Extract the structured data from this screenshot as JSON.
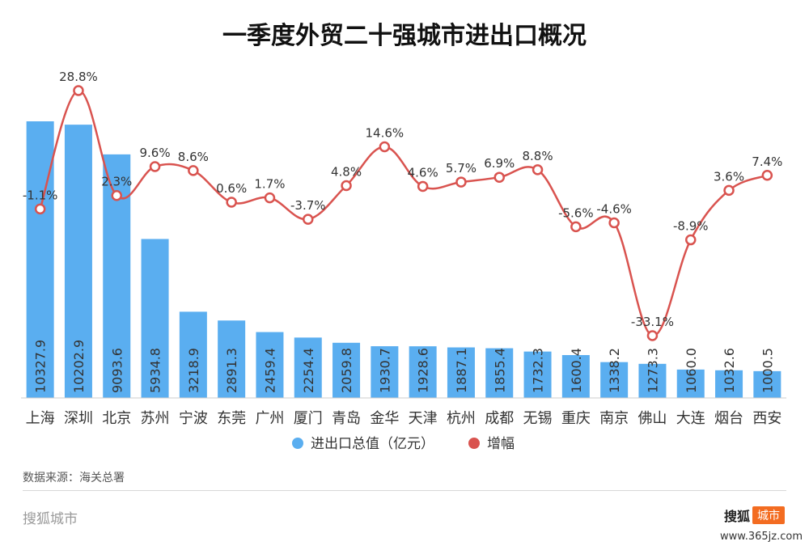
{
  "chart_data": {
    "type": "bar",
    "title": "一季度外贸二十强城市进出口概况",
    "categories": [
      "上海",
      "深圳",
      "北京",
      "苏州",
      "宁波",
      "东莞",
      "广州",
      "厦门",
      "青岛",
      "金华",
      "天津",
      "杭州",
      "成都",
      "无锡",
      "重庆",
      "南京",
      "佛山",
      "大连",
      "烟台",
      "西安"
    ],
    "series": [
      {
        "name": "进出口总值（亿元）",
        "type": "bar",
        "color": "#5aaef0",
        "values": [
          10327.9,
          10202.9,
          9093.6,
          5934.8,
          3218.9,
          2891.3,
          2459.4,
          2254.4,
          2059.8,
          1930.7,
          1928.6,
          1887.1,
          1855.4,
          1732.3,
          1600.4,
          1338.2,
          1273.3,
          1060.0,
          1032.6,
          1000.5
        ],
        "labels": [
          "10327.9",
          "10202.9",
          "9093.6",
          "5934.8",
          "3218.9",
          "2891.3",
          "2459.4",
          "2254.4",
          "2059.8",
          "1930.7",
          "1928.6",
          "1887.1",
          "1855.4",
          "1732.3",
          "1600.4",
          "1338.2",
          "1273.3",
          "1060.0",
          "1032.6",
          "1000.5"
        ]
      },
      {
        "name": "增幅",
        "type": "line",
        "color": "#d9534f",
        "values": [
          -1.1,
          28.8,
          2.3,
          9.6,
          8.6,
          0.6,
          1.7,
          -3.7,
          4.8,
          14.6,
          4.6,
          5.7,
          6.9,
          8.8,
          -5.6,
          -4.6,
          -33.1,
          -8.9,
          3.6,
          7.4
        ],
        "labels": [
          "-1.1%",
          "28.8%",
          "2.3%",
          "9.6%",
          "8.6%",
          "0.6%",
          "1.7%",
          "-3.7%",
          "4.8%",
          "14.6%",
          "4.6%",
          "5.7%",
          "6.9%",
          "8.8%",
          "-5.6%",
          "-4.6%",
          "-33.1%",
          "-8.9%",
          "3.6%",
          "7.4%"
        ]
      }
    ],
    "ylim_bar": [
      0,
      12000
    ],
    "ylim_line": [
      -40,
      35
    ],
    "legend_position": "bottom-center",
    "grid": false
  },
  "source": "数据来源：海关总署",
  "footer": {
    "brand": "搜狐城市",
    "logo_text": "搜狐",
    "logo_badge": "城市",
    "watermark": "www.365jz.com"
  },
  "colors": {
    "bar": "#5aaef0",
    "line": "#d9534f"
  }
}
